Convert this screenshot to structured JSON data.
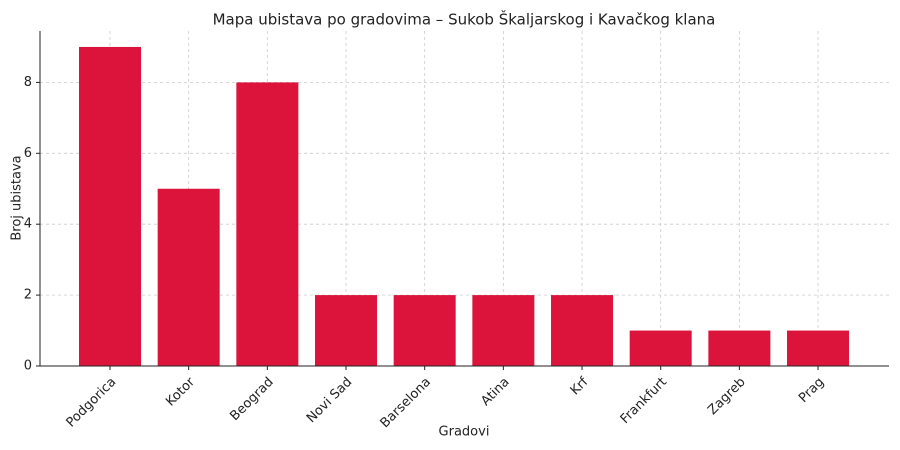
{
  "chart_data": {
    "type": "bar",
    "title": "Mapa ubistava po gradovima – Sukob Škaljarskog i Kavačkog klana",
    "x_label": "Gradovi",
    "y_label": "Broj ubistava",
    "categories": [
      "Podgorica",
      "Kotor",
      "Beograd",
      "Novi Sad",
      "Barselona",
      "Atina",
      "Krf",
      "Frankfurt",
      "Zagreb",
      "Prag"
    ],
    "values": [
      9,
      5,
      8,
      2,
      2,
      2,
      2,
      1,
      1,
      1
    ],
    "color": "#dc143c",
    "ylim": [
      0,
      9.45
    ],
    "yticks": [
      0,
      2,
      4,
      6,
      8
    ],
    "grid": true
  }
}
